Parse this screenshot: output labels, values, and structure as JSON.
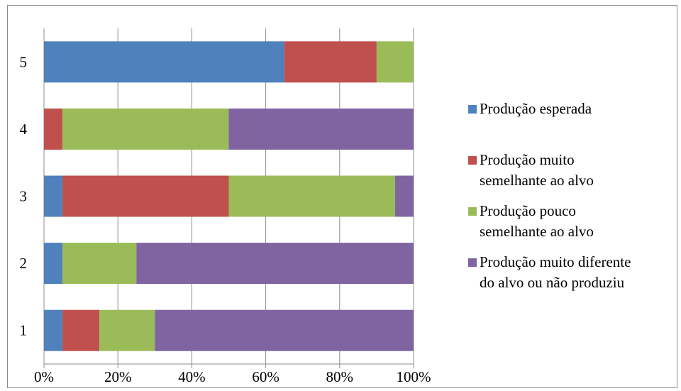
{
  "chart_data": {
    "type": "bar",
    "orientation": "horizontal",
    "stacked": "percent",
    "categories": [
      "1",
      "2",
      "3",
      "4",
      "5"
    ],
    "x_ticks": [
      "0%",
      "20%",
      "40%",
      "60%",
      "80%",
      "100%"
    ],
    "xlim": [
      0,
      100
    ],
    "grid": "vertical",
    "legend_position": "right",
    "series": [
      {
        "name": "Produção esperada",
        "color": "#4F81BD",
        "values": [
          5,
          5,
          5,
          0,
          65
        ]
      },
      {
        "name": "Produção muito semelhante ao alvo",
        "color": "#C0504D",
        "values": [
          10,
          0,
          45,
          5,
          25
        ]
      },
      {
        "name": "Produção pouco semelhante ao alvo",
        "color": "#9BBB59",
        "values": [
          15,
          20,
          45,
          45,
          10
        ]
      },
      {
        "name": "Produção muito diferente do alvo ou não produziu",
        "color": "#8064A2",
        "values": [
          70,
          75,
          5,
          50,
          0
        ]
      }
    ],
    "legend_lines": [
      [
        "Produção esperada"
      ],
      [
        "Produção muito",
        "semelhante ao alvo"
      ],
      [
        "Produção pouco",
        "semelhante ao alvo"
      ],
      [
        "Produção muito diferente",
        "do alvo ou não produziu"
      ]
    ]
  }
}
